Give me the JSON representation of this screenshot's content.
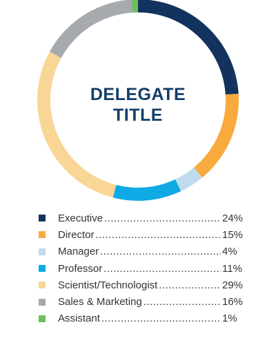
{
  "chart_data": {
    "type": "pie",
    "style": "donut",
    "title": "DELEGATE TITLE",
    "title_lines": [
      "DELEGATE",
      "TITLE"
    ],
    "categories": [
      "Executive",
      "Director",
      "Manager",
      "Professor",
      "Scientist/Technologist",
      "Sales & Marketing",
      "Assistant"
    ],
    "values": [
      24,
      15,
      4,
      11,
      29,
      16,
      1
    ],
    "value_labels": [
      "24%",
      "15%",
      "4%",
      "11%",
      "29%",
      "16%",
      "1%"
    ],
    "colors": [
      "#12335d",
      "#f8aa3e",
      "#c0dbef",
      "#0fa9e6",
      "#f9d696",
      "#a6a9ae",
      "#6cbe5e"
    ],
    "legend_position": "bottom",
    "title_color": "#123d69"
  }
}
